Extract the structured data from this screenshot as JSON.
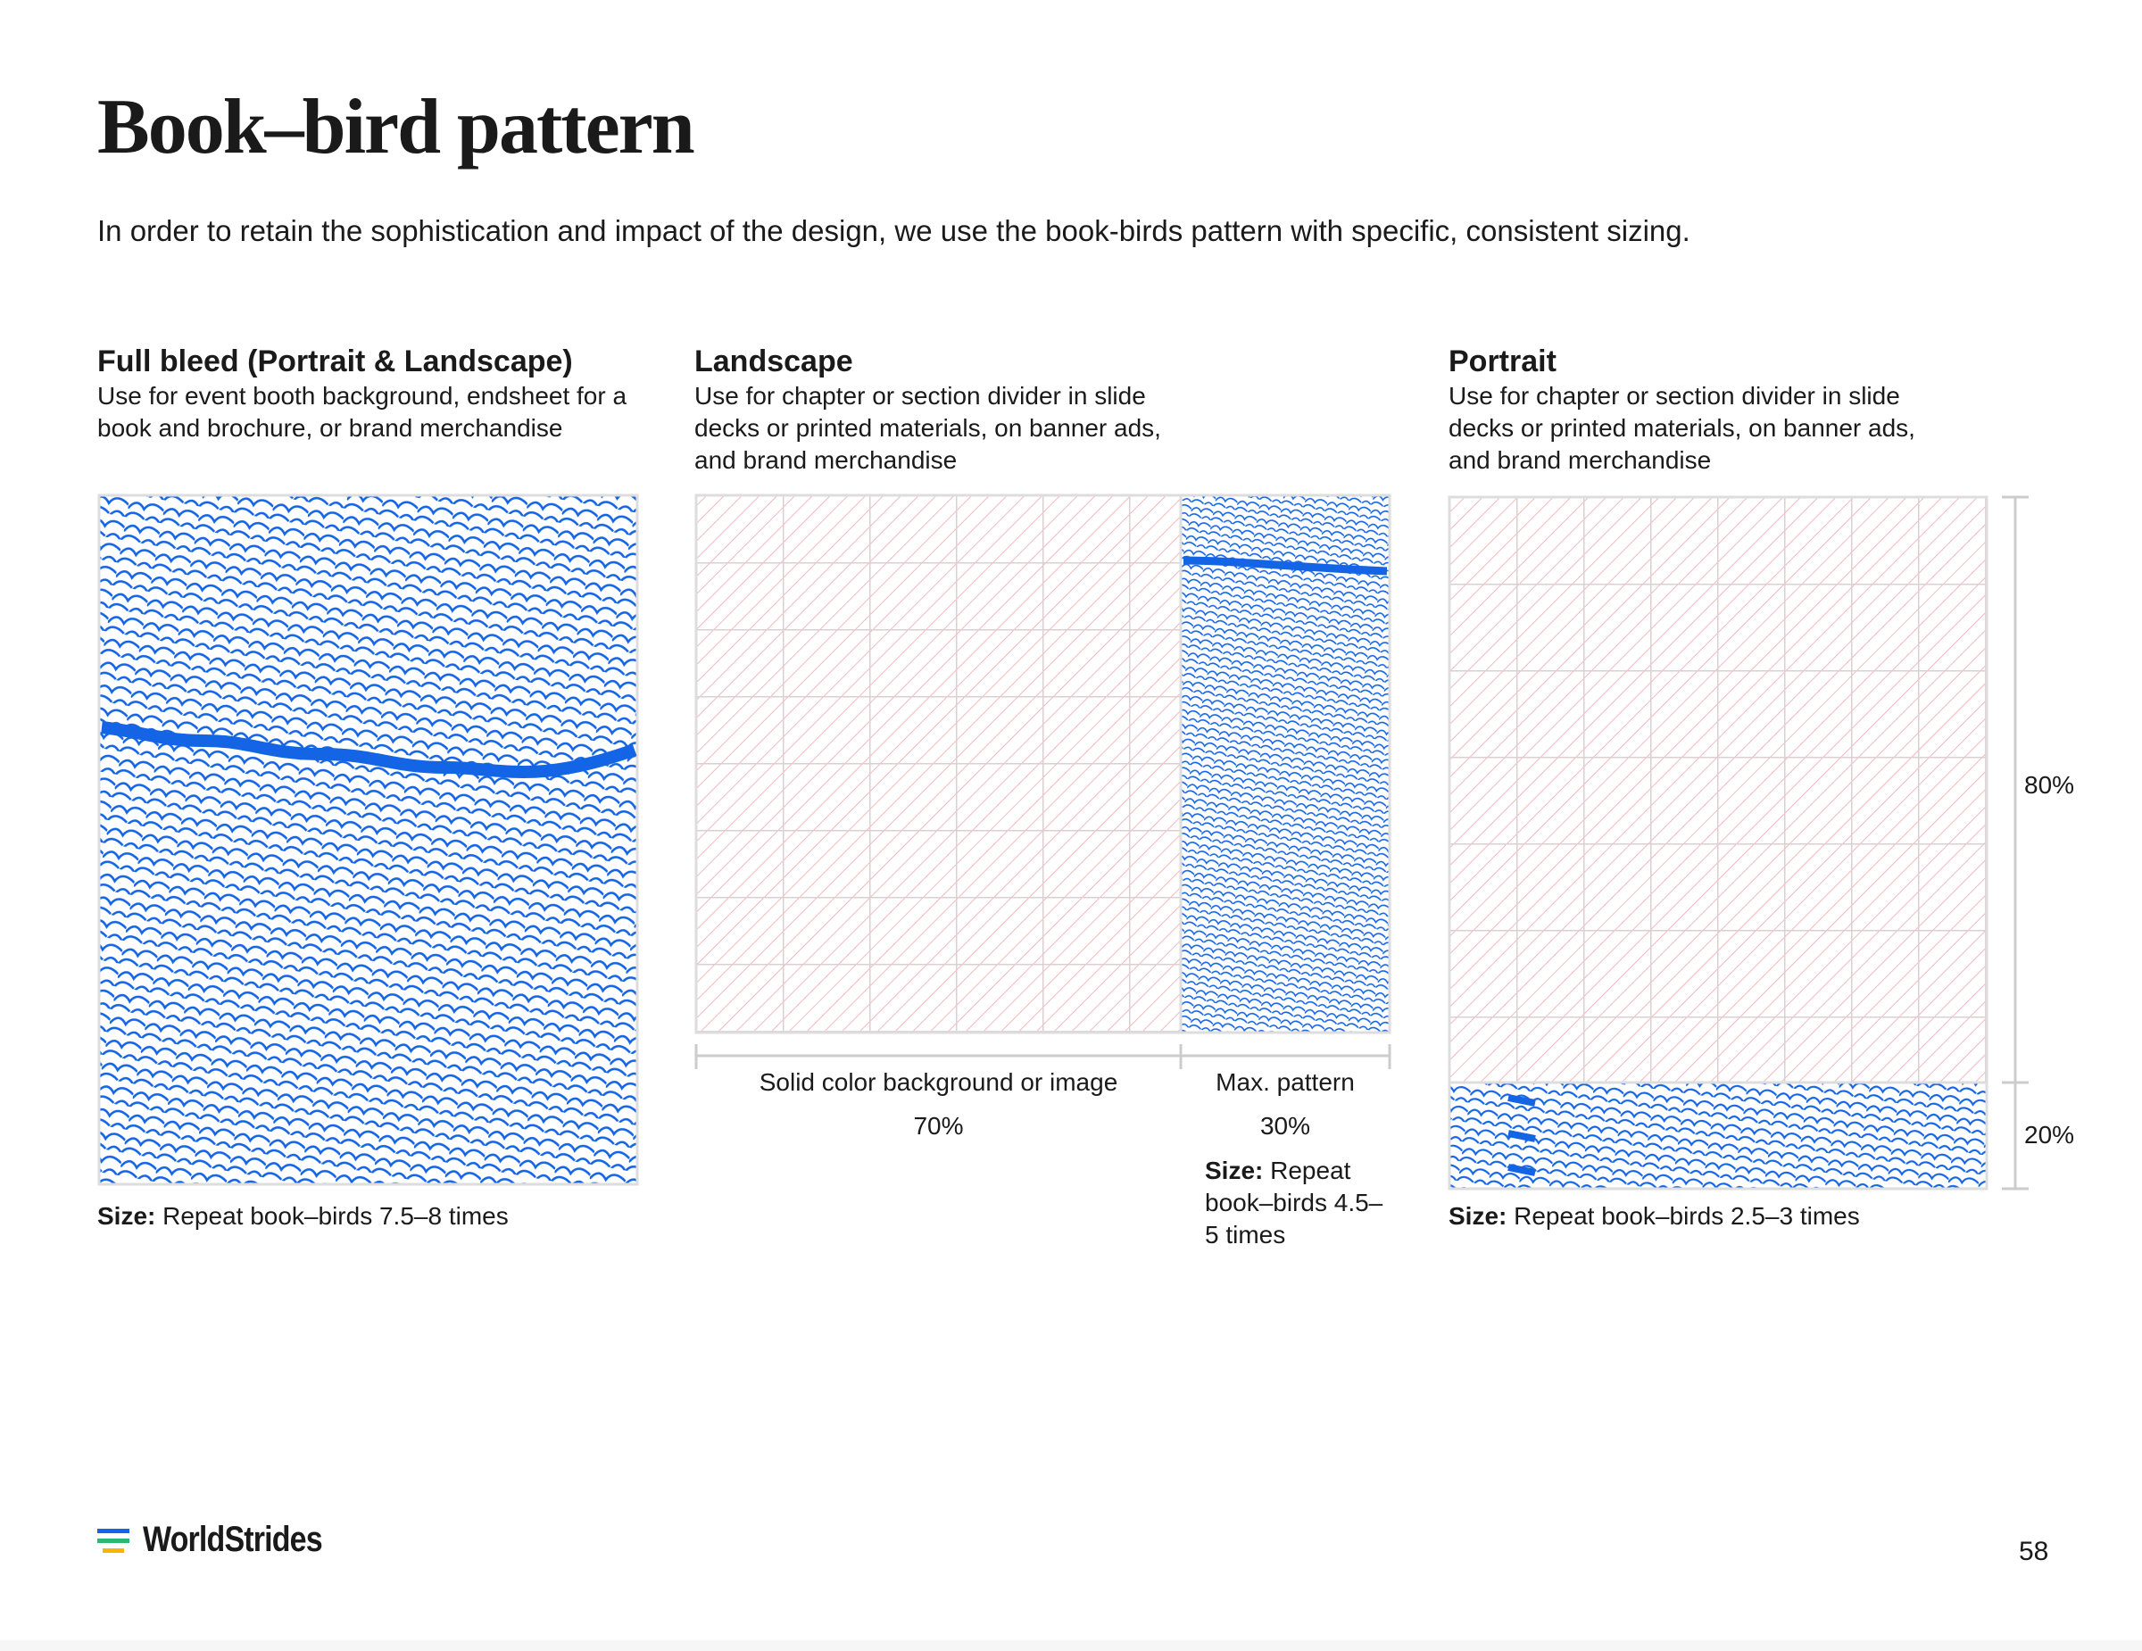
{
  "header": {
    "title": "Book–bird pattern",
    "intro": "In order to retain the sophistication and impact of the design, we use the book-birds pattern with specific, consistent sizing."
  },
  "sections": [
    {
      "heading": "Full bleed (Portrait & Landscape)",
      "description": "Use for event booth background, endsheet for a book and brochure, or brand merchandise",
      "size_label": "Size:",
      "size_text": "Repeat book–birds 7.5–8 times"
    },
    {
      "heading": "Landscape",
      "description": "Use for chapter or section divider in slide decks or printed materials, on banner ads, and brand merchandise",
      "size_label": "Size:",
      "size_text": "Repeat book–birds 4.5–5 times"
    },
    {
      "heading": "Portrait",
      "description": "Use for chapter or section divider in slide decks or printed materials, on banner ads, and brand merchandise",
      "size_label": "Size:",
      "size_text": "Repeat book–birds 2.5–3 times"
    }
  ],
  "landscape_labels": {
    "solid": "Solid color background or image",
    "solid_pct": "70%",
    "max": "Max. pattern",
    "max_pct": "30%"
  },
  "portrait_labels": {
    "top_pct": "80%",
    "bottom_pct": "20%"
  },
  "footer": {
    "logo": "WorldStrides",
    "page": "58"
  }
}
